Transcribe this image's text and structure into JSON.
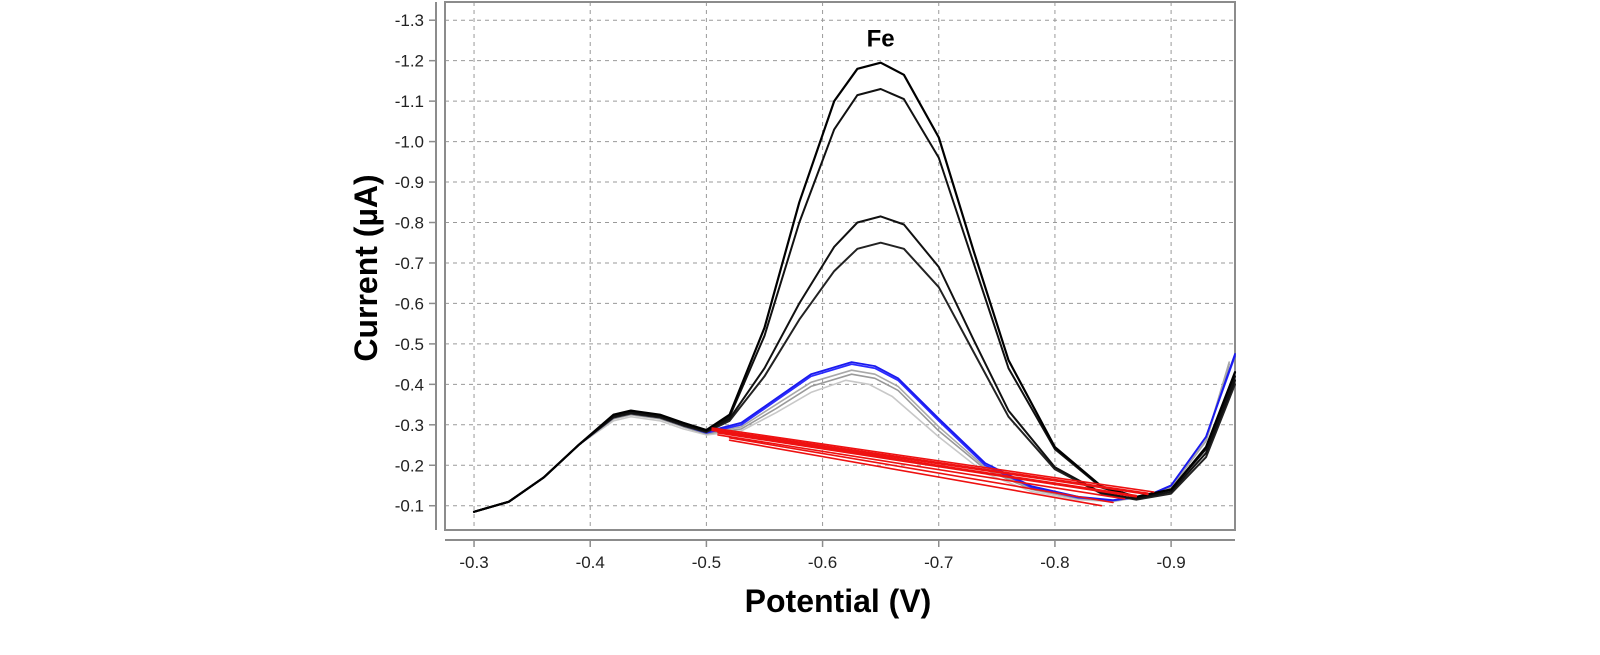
{
  "chart_data": {
    "type": "line",
    "title": "",
    "xlabel": "Potential (V)",
    "ylabel": "Current (µA)",
    "xlim": [
      -0.275,
      -0.955
    ],
    "ylim": [
      -0.04,
      -1.345
    ],
    "x_ticks": [
      -0.3,
      -0.4,
      -0.5,
      -0.6,
      -0.7,
      -0.8,
      -0.9
    ],
    "x_tick_labels": [
      "-0.3",
      "-0.4",
      "-0.5",
      "-0.6",
      "-0.7",
      "-0.8",
      "-0.9"
    ],
    "y_ticks": [
      -0.1,
      -0.2,
      -0.3,
      -0.4,
      -0.5,
      -0.6,
      -0.7,
      -0.8,
      -0.9,
      -1.0,
      -1.1,
      -1.2,
      -1.3
    ],
    "y_tick_labels": [
      "-0.1",
      "-0.2",
      "-0.3",
      "-0.4",
      "-0.5",
      "-0.6",
      "-0.7",
      "-0.8",
      "-0.9",
      "-1.0",
      "-1.1",
      "-1.2",
      "-1.3"
    ],
    "grid": true,
    "annotations": [
      {
        "text": "Fe",
        "x": -0.65,
        "y": -1.255
      }
    ],
    "series": [
      {
        "color": "#c8c8c8",
        "stroke_width": 1.6,
        "x": [
          -0.3,
          -0.33,
          -0.36,
          -0.39,
          -0.42,
          -0.435,
          -0.46,
          -0.48,
          -0.5,
          -0.53,
          -0.56,
          -0.59,
          -0.62,
          -0.64,
          -0.66,
          -0.7,
          -0.74,
          -0.78,
          -0.82,
          -0.85,
          -0.88,
          -0.9,
          -0.93,
          -0.95
        ],
        "y": [
          -0.085,
          -0.11,
          -0.17,
          -0.25,
          -0.31,
          -0.32,
          -0.31,
          -0.29,
          -0.275,
          -0.285,
          -0.33,
          -0.38,
          -0.41,
          -0.4,
          -0.37,
          -0.27,
          -0.18,
          -0.135,
          -0.115,
          -0.11,
          -0.125,
          -0.145,
          -0.26,
          -0.44
        ]
      },
      {
        "color": "#9a9a9a",
        "stroke_width": 1.6,
        "x": [
          -0.3,
          -0.33,
          -0.36,
          -0.39,
          -0.42,
          -0.435,
          -0.46,
          -0.48,
          -0.5,
          -0.53,
          -0.56,
          -0.59,
          -0.625,
          -0.645,
          -0.665,
          -0.7,
          -0.74,
          -0.78,
          -0.82,
          -0.85,
          -0.88,
          -0.9,
          -0.93,
          -0.95
        ],
        "y": [
          -0.085,
          -0.11,
          -0.17,
          -0.25,
          -0.315,
          -0.325,
          -0.315,
          -0.295,
          -0.278,
          -0.29,
          -0.34,
          -0.395,
          -0.425,
          -0.415,
          -0.385,
          -0.285,
          -0.19,
          -0.14,
          -0.118,
          -0.112,
          -0.125,
          -0.145,
          -0.26,
          -0.45
        ]
      },
      {
        "color": "#a8a8a8",
        "stroke_width": 1.6,
        "x": [
          -0.3,
          -0.33,
          -0.36,
          -0.39,
          -0.42,
          -0.435,
          -0.46,
          -0.48,
          -0.5,
          -0.53,
          -0.56,
          -0.59,
          -0.625,
          -0.645,
          -0.665,
          -0.7,
          -0.74,
          -0.78,
          -0.82,
          -0.85,
          -0.88,
          -0.9,
          -0.93,
          -0.95
        ],
        "y": [
          -0.085,
          -0.11,
          -0.17,
          -0.25,
          -0.318,
          -0.328,
          -0.318,
          -0.298,
          -0.28,
          -0.295,
          -0.35,
          -0.405,
          -0.435,
          -0.425,
          -0.395,
          -0.295,
          -0.195,
          -0.142,
          -0.12,
          -0.113,
          -0.126,
          -0.146,
          -0.262,
          -0.455
        ]
      },
      {
        "color": "#2b2bff",
        "stroke_width": 1.8,
        "x": [
          -0.3,
          -0.33,
          -0.36,
          -0.39,
          -0.42,
          -0.435,
          -0.46,
          -0.48,
          -0.5,
          -0.53,
          -0.56,
          -0.59,
          -0.625,
          -0.645,
          -0.665,
          -0.7,
          -0.74,
          -0.78,
          -0.82,
          -0.85,
          -0.88,
          -0.9,
          -0.93,
          -0.955
        ],
        "y": [
          -0.085,
          -0.11,
          -0.17,
          -0.25,
          -0.318,
          -0.328,
          -0.318,
          -0.298,
          -0.28,
          -0.3,
          -0.36,
          -0.42,
          -0.45,
          -0.44,
          -0.41,
          -0.31,
          -0.2,
          -0.145,
          -0.12,
          -0.113,
          -0.125,
          -0.15,
          -0.27,
          -0.47
        ]
      },
      {
        "color": "#1a1aee",
        "stroke_width": 1.8,
        "x": [
          -0.3,
          -0.33,
          -0.36,
          -0.39,
          -0.42,
          -0.435,
          -0.46,
          -0.48,
          -0.5,
          -0.53,
          -0.56,
          -0.59,
          -0.625,
          -0.645,
          -0.665,
          -0.7,
          -0.74,
          -0.78,
          -0.82,
          -0.85,
          -0.88,
          -0.9,
          -0.93,
          -0.955
        ],
        "y": [
          -0.085,
          -0.11,
          -0.17,
          -0.25,
          -0.32,
          -0.33,
          -0.32,
          -0.3,
          -0.283,
          -0.305,
          -0.365,
          -0.425,
          -0.455,
          -0.445,
          -0.415,
          -0.315,
          -0.205,
          -0.148,
          -0.122,
          -0.114,
          -0.125,
          -0.15,
          -0.27,
          -0.475
        ]
      },
      {
        "color": "#222222",
        "stroke_width": 2,
        "x": [
          -0.3,
          -0.33,
          -0.36,
          -0.39,
          -0.42,
          -0.435,
          -0.46,
          -0.48,
          -0.5,
          -0.52,
          -0.55,
          -0.58,
          -0.61,
          -0.63,
          -0.65,
          -0.67,
          -0.7,
          -0.73,
          -0.76,
          -0.8,
          -0.84,
          -0.87,
          -0.9,
          -0.93,
          -0.955
        ],
        "y": [
          -0.085,
          -0.11,
          -0.17,
          -0.25,
          -0.318,
          -0.328,
          -0.318,
          -0.298,
          -0.282,
          -0.31,
          -0.42,
          -0.56,
          -0.68,
          -0.735,
          -0.75,
          -0.735,
          -0.64,
          -0.48,
          -0.32,
          -0.19,
          -0.13,
          -0.115,
          -0.13,
          -0.22,
          -0.4
        ]
      },
      {
        "color": "#111111",
        "stroke_width": 2,
        "x": [
          -0.3,
          -0.33,
          -0.36,
          -0.39,
          -0.42,
          -0.435,
          -0.46,
          -0.48,
          -0.5,
          -0.52,
          -0.55,
          -0.58,
          -0.61,
          -0.63,
          -0.65,
          -0.67,
          -0.7,
          -0.73,
          -0.76,
          -0.8,
          -0.84,
          -0.87,
          -0.9,
          -0.93,
          -0.955
        ],
        "y": [
          -0.085,
          -0.11,
          -0.17,
          -0.25,
          -0.32,
          -0.33,
          -0.32,
          -0.3,
          -0.284,
          -0.315,
          -0.44,
          -0.6,
          -0.74,
          -0.8,
          -0.815,
          -0.795,
          -0.69,
          -0.51,
          -0.335,
          -0.195,
          -0.132,
          -0.117,
          -0.135,
          -0.23,
          -0.41
        ]
      },
      {
        "color": "#111111",
        "stroke_width": 2,
        "x": [
          -0.3,
          -0.33,
          -0.36,
          -0.39,
          -0.42,
          -0.435,
          -0.46,
          -0.48,
          -0.5,
          -0.52,
          -0.55,
          -0.58,
          -0.61,
          -0.63,
          -0.65,
          -0.67,
          -0.7,
          -0.73,
          -0.76,
          -0.8,
          -0.84,
          -0.87,
          -0.9,
          -0.93,
          -0.955
        ],
        "y": [
          -0.085,
          -0.11,
          -0.17,
          -0.25,
          -0.322,
          -0.332,
          -0.322,
          -0.302,
          -0.285,
          -0.32,
          -0.52,
          -0.8,
          -1.03,
          -1.115,
          -1.13,
          -1.105,
          -0.96,
          -0.7,
          -0.44,
          -0.24,
          -0.145,
          -0.12,
          -0.14,
          -0.24,
          -0.42
        ]
      },
      {
        "color": "#000000",
        "stroke_width": 2.2,
        "x": [
          -0.3,
          -0.33,
          -0.36,
          -0.39,
          -0.42,
          -0.435,
          -0.46,
          -0.48,
          -0.5,
          -0.52,
          -0.55,
          -0.58,
          -0.61,
          -0.63,
          -0.65,
          -0.67,
          -0.7,
          -0.73,
          -0.76,
          -0.8,
          -0.84,
          -0.87,
          -0.9,
          -0.93,
          -0.955
        ],
        "y": [
          -0.085,
          -0.11,
          -0.17,
          -0.25,
          -0.325,
          -0.335,
          -0.325,
          -0.305,
          -0.287,
          -0.325,
          -0.54,
          -0.85,
          -1.1,
          -1.18,
          -1.195,
          -1.165,
          -1.01,
          -0.73,
          -0.46,
          -0.245,
          -0.148,
          -0.122,
          -0.14,
          -0.245,
          -0.43
        ]
      },
      {
        "color": "#ee1111",
        "stroke_width": 1.6,
        "x": [
          -0.52,
          -0.84
        ],
        "y": [
          -0.262,
          -0.1
        ]
      },
      {
        "color": "#ee1111",
        "stroke_width": 1.6,
        "x": [
          -0.52,
          -0.85
        ],
        "y": [
          -0.268,
          -0.108
        ]
      },
      {
        "color": "#ee1111",
        "stroke_width": 1.6,
        "x": [
          -0.51,
          -0.86
        ],
        "y": [
          -0.275,
          -0.117
        ]
      },
      {
        "color": "#ee1111",
        "stroke_width": 1.6,
        "x": [
          -0.51,
          -0.87
        ],
        "y": [
          -0.28,
          -0.122
        ]
      },
      {
        "color": "#ee1111",
        "stroke_width": 1.6,
        "x": [
          -0.51,
          -0.87
        ],
        "y": [
          -0.283,
          -0.125
        ]
      },
      {
        "color": "#ee1111",
        "stroke_width": 1.6,
        "x": [
          -0.505,
          -0.88
        ],
        "y": [
          -0.286,
          -0.128
        ]
      },
      {
        "color": "#ee1111",
        "stroke_width": 1.6,
        "x": [
          -0.505,
          -0.88
        ],
        "y": [
          -0.289,
          -0.131
        ]
      },
      {
        "color": "#ee1111",
        "stroke_width": 1.6,
        "x": [
          -0.505,
          -0.885
        ],
        "y": [
          -0.292,
          -0.134
        ]
      }
    ]
  }
}
